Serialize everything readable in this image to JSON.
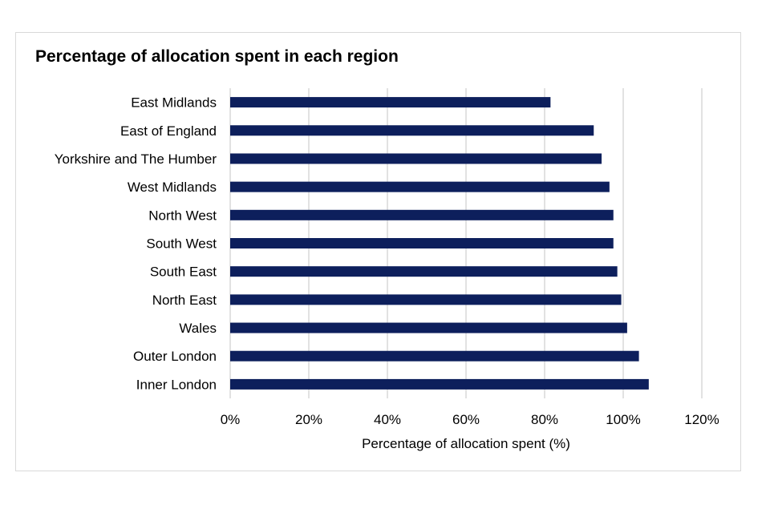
{
  "chart_data": {
    "type": "bar",
    "orientation": "horizontal",
    "title": "Percentage of allocation spent in each region",
    "xlabel": "Percentage of allocation spent (%)",
    "ylabel": "",
    "categories": [
      "East Midlands",
      "East of England",
      "Yorkshire and The Humber",
      "West Midlands",
      "North West",
      "South West",
      "South East",
      "North East",
      "Wales",
      "Outer London",
      "Inner London"
    ],
    "values": [
      81.5,
      92.5,
      94.5,
      96.5,
      97.5,
      97.5,
      98.5,
      99.5,
      101,
      104,
      106.5
    ],
    "xlim": [
      0,
      120
    ],
    "xticks": [
      0,
      20,
      40,
      60,
      80,
      100,
      120
    ],
    "xtick_labels": [
      "0%",
      "20%",
      "40%",
      "60%",
      "80%",
      "100%",
      "120%"
    ],
    "grid": "vertical",
    "legend": "none",
    "bar_color": "#0d1f5c",
    "grid_color": "#d9d9d9"
  }
}
